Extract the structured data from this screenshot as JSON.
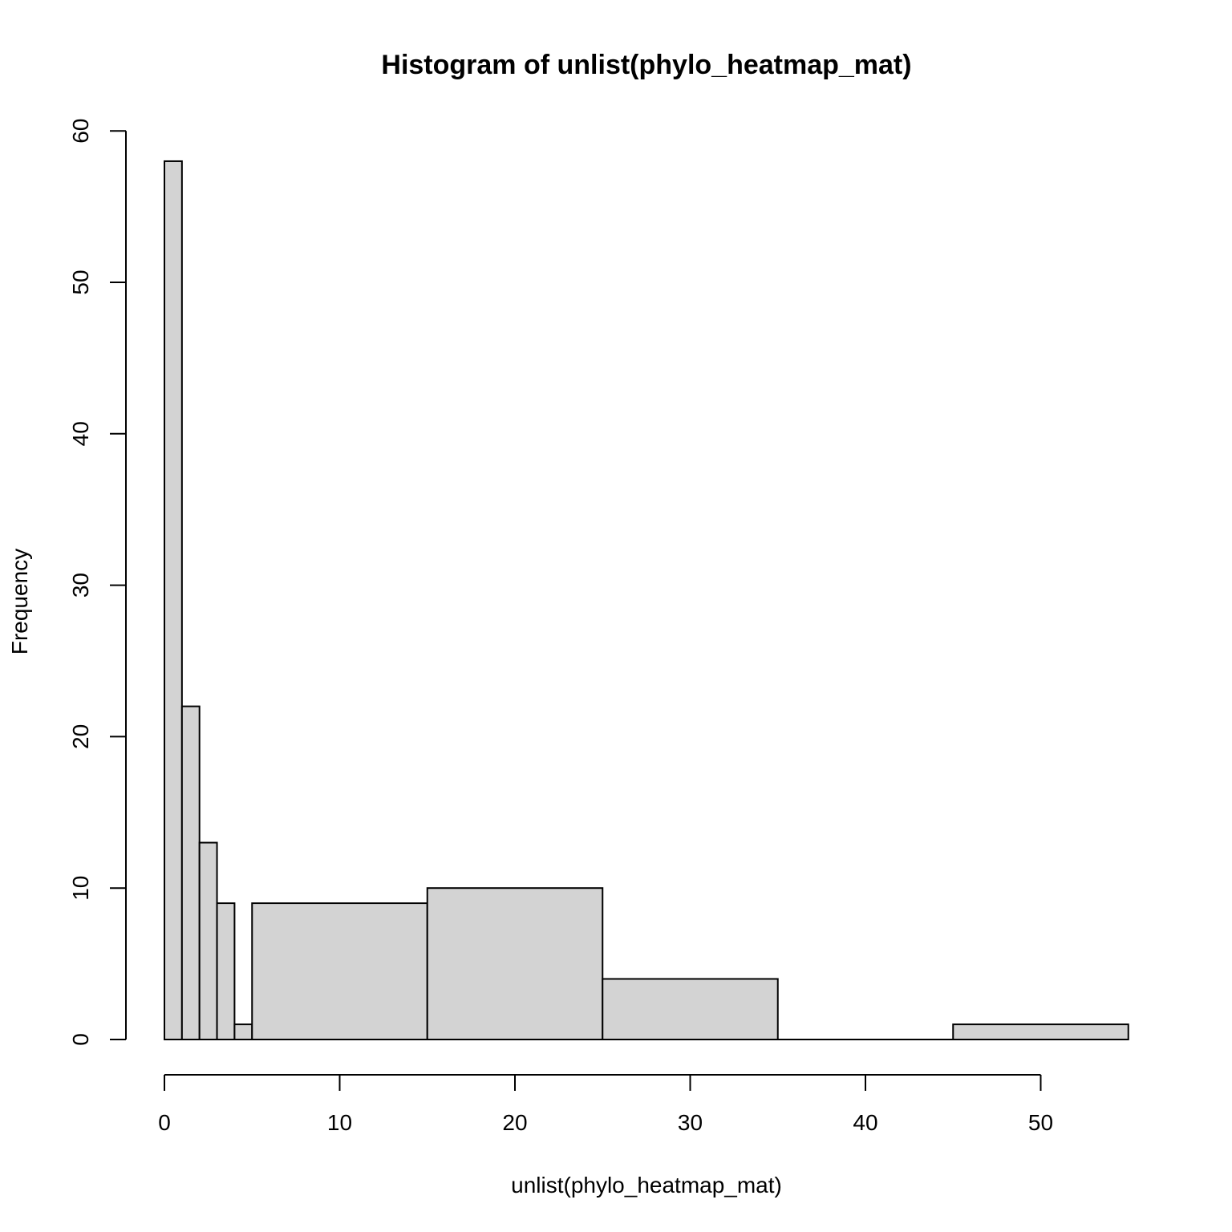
{
  "chart_data": {
    "type": "bar",
    "histogram": true,
    "title": "Histogram of unlist(phylo_heatmap_mat)",
    "xlabel": "unlist(phylo_heatmap_mat)",
    "ylabel": "Frequency",
    "xlim": [
      0,
      55
    ],
    "ylim": [
      0,
      60
    ],
    "x_ticks": [
      0,
      10,
      20,
      30,
      40,
      50
    ],
    "y_ticks": [
      0,
      10,
      20,
      30,
      40,
      50,
      60
    ],
    "bins": [
      {
        "from": 0,
        "to": 1,
        "count": 58
      },
      {
        "from": 1,
        "to": 2,
        "count": 22
      },
      {
        "from": 2,
        "to": 3,
        "count": 13
      },
      {
        "from": 3,
        "to": 4,
        "count": 9
      },
      {
        "from": 4,
        "to": 5,
        "count": 1
      },
      {
        "from": 5,
        "to": 15,
        "count": 9
      },
      {
        "from": 15,
        "to": 25,
        "count": 10
      },
      {
        "from": 25,
        "to": 35,
        "count": 4
      },
      {
        "from": 35,
        "to": 45,
        "count": 0
      },
      {
        "from": 45,
        "to": 55,
        "count": 1
      }
    ],
    "bar_color": "#d3d3d3",
    "grid": false,
    "legend": "none"
  }
}
